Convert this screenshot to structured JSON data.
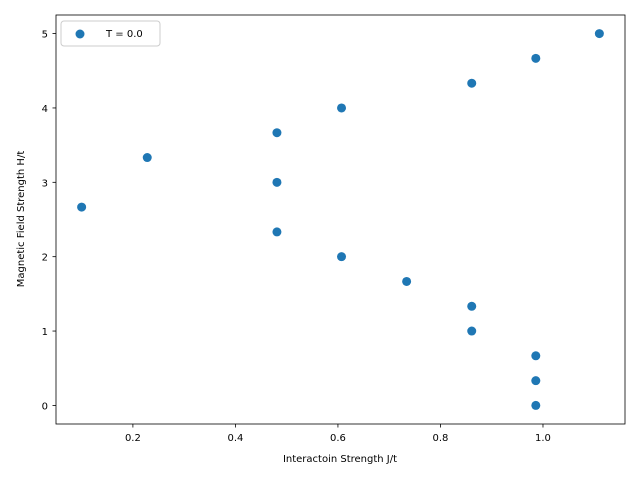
{
  "chart_data": {
    "type": "scatter",
    "xlabel": "Interactoin Strength J/t",
    "ylabel": "Magnetic Field Strength H/t",
    "xlim": [
      0.05,
      1.16
    ],
    "ylim": [
      -0.25,
      5.25
    ],
    "xticks": [
      0.2,
      0.4,
      0.6,
      0.8,
      1.0
    ],
    "xtick_labels": [
      "0.2",
      "0.4",
      "0.6",
      "0.8",
      "1.0"
    ],
    "yticks": [
      0,
      1,
      2,
      3,
      4,
      5
    ],
    "ytick_labels": [
      "0",
      "1",
      "2",
      "3",
      "4",
      "5"
    ],
    "grid": false,
    "legend_position": "top-left",
    "series": [
      {
        "name": "T = 0.0",
        "color": "#1f77b4",
        "points": [
          {
            "x": 1.11,
            "y": 5.0
          },
          {
            "x": 0.986,
            "y": 4.667
          },
          {
            "x": 0.861,
            "y": 4.333
          },
          {
            "x": 0.607,
            "y": 4.0
          },
          {
            "x": 0.481,
            "y": 3.667
          },
          {
            "x": 0.228,
            "y": 3.333
          },
          {
            "x": 0.481,
            "y": 3.0
          },
          {
            "x": 0.1,
            "y": 2.667
          },
          {
            "x": 0.481,
            "y": 2.333
          },
          {
            "x": 0.607,
            "y": 2.0
          },
          {
            "x": 0.734,
            "y": 1.667
          },
          {
            "x": 0.861,
            "y": 1.333
          },
          {
            "x": 0.861,
            "y": 1.0
          },
          {
            "x": 0.986,
            "y": 0.667
          },
          {
            "x": 0.986,
            "y": 0.333
          },
          {
            "x": 0.986,
            "y": 0.0
          }
        ]
      }
    ]
  }
}
